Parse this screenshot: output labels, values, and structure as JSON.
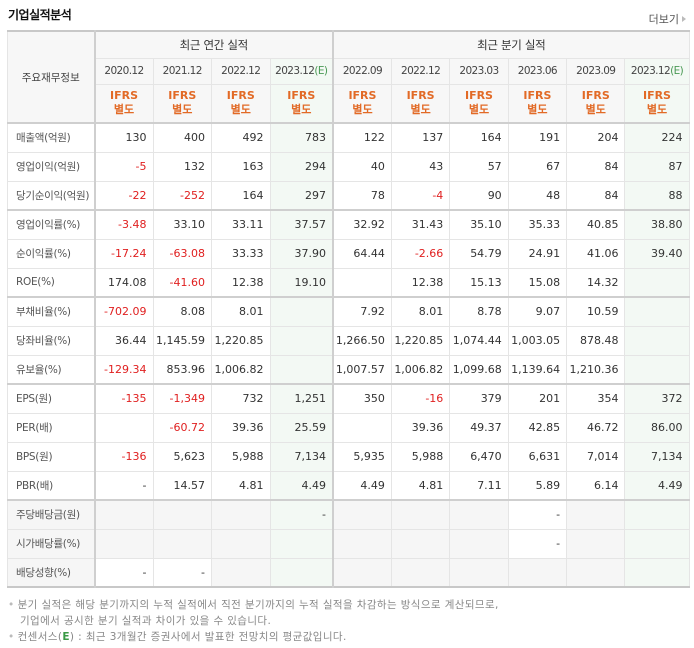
{
  "header": {
    "title": "기업실적분석",
    "more_label": "더보기"
  },
  "table": {
    "row_header_label": "주요재무정보",
    "group_annual": "최근 연간 실적",
    "group_quarterly": "최근 분기 실적",
    "annual_periods": [
      "2020.12",
      "2021.12",
      "2022.12",
      "2023.12"
    ],
    "annual_estimate_suffix": "(E)",
    "quarterly_periods": [
      "2022.09",
      "2022.12",
      "2023.03",
      "2023.06",
      "2023.09",
      "2023.12"
    ],
    "quarterly_estimate_suffix": "(E)",
    "basis_line1": "IFRS",
    "basis_line2": "별도",
    "rows": [
      {
        "label": "매출액(억원)",
        "values": [
          "130",
          "400",
          "492",
          "783",
          "122",
          "137",
          "164",
          "191",
          "204",
          "224"
        ]
      },
      {
        "label": "영업이익(억원)",
        "values": [
          "-5",
          "132",
          "163",
          "294",
          "40",
          "43",
          "57",
          "67",
          "84",
          "87"
        ]
      },
      {
        "label": "당기순이익(억원)",
        "values": [
          "-22",
          "-252",
          "164",
          "297",
          "78",
          "-4",
          "90",
          "48",
          "84",
          "88"
        ]
      },
      {
        "label": "영업이익률(%)",
        "values": [
          "-3.48",
          "33.10",
          "33.11",
          "37.57",
          "32.92",
          "31.43",
          "35.10",
          "35.33",
          "40.85",
          "38.80"
        ]
      },
      {
        "label": "순이익률(%)",
        "values": [
          "-17.24",
          "-63.08",
          "33.33",
          "37.90",
          "64.44",
          "-2.66",
          "54.79",
          "24.91",
          "41.06",
          "39.40"
        ]
      },
      {
        "label": "ROE(%)",
        "values": [
          "174.08",
          "-41.60",
          "12.38",
          "19.10",
          "",
          "12.38",
          "15.13",
          "15.08",
          "14.32",
          ""
        ]
      },
      {
        "label": "부채비율(%)",
        "values": [
          "-702.09",
          "8.08",
          "8.01",
          "",
          "7.92",
          "8.01",
          "8.78",
          "9.07",
          "10.59",
          ""
        ]
      },
      {
        "label": "당좌비율(%)",
        "values": [
          "36.44",
          "1,145.59",
          "1,220.85",
          "",
          "1,266.50",
          "1,220.85",
          "1,074.44",
          "1,003.05",
          "878.48",
          ""
        ]
      },
      {
        "label": "유보율(%)",
        "values": [
          "-129.34",
          "853.96",
          "1,006.82",
          "",
          "1,007.57",
          "1,006.82",
          "1,099.68",
          "1,139.64",
          "1,210.36",
          ""
        ]
      },
      {
        "label": "EPS(원)",
        "values": [
          "-135",
          "-1,349",
          "732",
          "1,251",
          "350",
          "-16",
          "379",
          "201",
          "354",
          "372"
        ]
      },
      {
        "label": "PER(배)",
        "values": [
          "",
          "-60.72",
          "39.36",
          "25.59",
          "",
          "39.36",
          "49.37",
          "42.85",
          "46.72",
          "86.00"
        ]
      },
      {
        "label": "BPS(원)",
        "values": [
          "-136",
          "5,623",
          "5,988",
          "7,134",
          "5,935",
          "5,988",
          "6,470",
          "6,631",
          "7,014",
          "7,134"
        ]
      },
      {
        "label": "PBR(배)",
        "values": [
          "-",
          "14.57",
          "4.81",
          "4.49",
          "4.49",
          "4.81",
          "7.11",
          "5.89",
          "6.14",
          "4.49"
        ]
      },
      {
        "label": "주당배당금(원)",
        "values": [
          "",
          "",
          "",
          "-",
          "",
          "",
          "",
          "-",
          "",
          ""
        ]
      },
      {
        "label": "시가배당률(%)",
        "values": [
          "",
          "",
          "",
          "",
          "",
          "",
          "",
          "-",
          "",
          ""
        ]
      },
      {
        "label": "배당성향(%)",
        "values": [
          "-",
          "-",
          "",
          "",
          "",
          "",
          "",
          "",
          "",
          ""
        ]
      }
    ]
  },
  "notes": {
    "line1": "분기 실적은 해당 분기까지의 누적 실적에서 직전 분기까지의 누적 실적을 차감하는 방식으로 계산되므로,",
    "line2": "기업에서 공시한 분기 실적과 차이가 있을 수 있습니다.",
    "line3_prefix": "컨센서스(",
    "line3_e": "E",
    "line3_suffix": ") : 최근 3개월간 증권사에서 발표한 전망치의 평균값입니다."
  },
  "colors": {
    "negative": "#e02020",
    "ifrs": "#e26a26",
    "estimate_bg": "#f3f9f4",
    "estimate_mark": "#4a9a55"
  }
}
